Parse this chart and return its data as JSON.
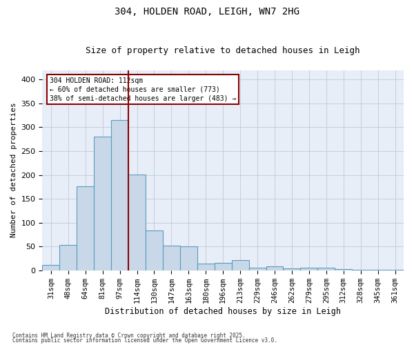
{
  "title": "304, HOLDEN ROAD, LEIGH, WN7 2HG",
  "subtitle": "Size of property relative to detached houses in Leigh",
  "xlabel": "Distribution of detached houses by size in Leigh",
  "ylabel": "Number of detached properties",
  "categories": [
    "31sqm",
    "48sqm",
    "64sqm",
    "81sqm",
    "97sqm",
    "114sqm",
    "130sqm",
    "147sqm",
    "163sqm",
    "180sqm",
    "196sqm",
    "213sqm",
    "229sqm",
    "246sqm",
    "262sqm",
    "279sqm",
    "295sqm",
    "312sqm",
    "328sqm",
    "345sqm",
    "361sqm"
  ],
  "values": [
    11,
    53,
    176,
    281,
    315,
    201,
    84,
    52,
    50,
    14,
    15,
    22,
    6,
    8,
    4,
    6,
    6,
    3,
    1,
    1,
    1
  ],
  "bar_color": "#c8d8e8",
  "bar_edge_color": "#5a9abe",
  "property_label": "304 HOLDEN ROAD: 112sqm",
  "annotation_line1": "← 60% of detached houses are smaller (773)",
  "annotation_line2": "38% of semi-detached houses are larger (483) →",
  "vline_color": "#8b0000",
  "vline_index": 5,
  "annotation_box_color": "#8b0000",
  "grid_color": "#c0c8d8",
  "background_color": "#e8eef8",
  "footer_line1": "Contains HM Land Registry data © Crown copyright and database right 2025.",
  "footer_line2": "Contains public sector information licensed under the Open Government Licence v3.0.",
  "ylim": [
    0,
    420
  ],
  "yticks": [
    0,
    50,
    100,
    150,
    200,
    250,
    300,
    350,
    400
  ],
  "title_fontsize": 10,
  "subtitle_fontsize": 9,
  "axis_label_fontsize": 8,
  "tick_fontsize": 7.5
}
